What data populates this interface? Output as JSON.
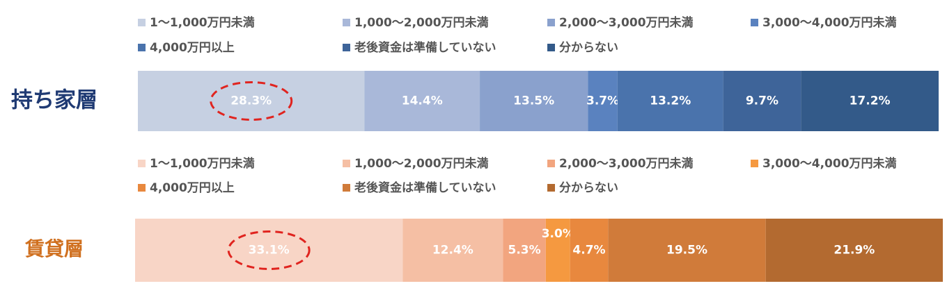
{
  "chart_data": [
    {
      "type": "bar",
      "orientation": "horizontal",
      "stacked": true,
      "row_label": "持ち家層",
      "row_label_color": "#1f3a73",
      "legend_placement": "top",
      "series": [
        {
          "name": "1〜1,000万円未満",
          "values": [
            28.3
          ],
          "color": "#c6d0e2",
          "label": "28.3%"
        },
        {
          "name": "1,000〜2,000万円未満",
          "values": [
            14.4
          ],
          "color": "#a9b8d9",
          "label": "14.4%"
        },
        {
          "name": "2,000〜3,000万円未満",
          "values": [
            13.5
          ],
          "color": "#8aa1cd",
          "label": "13.5%"
        },
        {
          "name": "3,000〜4,000万円未満",
          "values": [
            3.7
          ],
          "color": "#5a82bf",
          "label": "3.7%"
        },
        {
          "name": "4,000万円以上",
          "values": [
            13.2
          ],
          "color": "#4a73ac",
          "label": "13.2%"
        },
        {
          "name": "老後資金は準備していない",
          "values": [
            9.7
          ],
          "color": "#3e6499",
          "label": "9.7%"
        },
        {
          "name": "分からない",
          "values": [
            17.2
          ],
          "color": "#335a89",
          "label": "17.2%"
        }
      ],
      "highlight_series": 0
    },
    {
      "type": "bar",
      "orientation": "horizontal",
      "stacked": true,
      "row_label": "賃貸層",
      "row_label_color": "#d0701f",
      "legend_placement": "top",
      "series": [
        {
          "name": "1〜1,000万円未満",
          "values": [
            33.1
          ],
          "color": "#f8d5c6",
          "label": "33.1%"
        },
        {
          "name": "1,000〜2,000万円未満",
          "values": [
            12.4
          ],
          "color": "#f5bfa4",
          "label": "12.4%"
        },
        {
          "name": "2,000〜3,000万円未満",
          "values": [
            5.3
          ],
          "color": "#f2a57f",
          "label": "5.3%"
        },
        {
          "name": "3,000〜4,000万円未満",
          "values": [
            3.0
          ],
          "color": "#f59940",
          "label": "3.0%"
        },
        {
          "name": "4,000万円以上",
          "values": [
            4.7
          ],
          "color": "#e8883e",
          "label": "4.7%"
        },
        {
          "name": "老後資金は準備していない",
          "values": [
            19.5
          ],
          "color": "#d07b3a",
          "label": "19.5%"
        },
        {
          "name": "分からない",
          "values": [
            21.9
          ],
          "color": "#b36a30",
          "label": "21.9%"
        }
      ],
      "highlight_series": 0
    }
  ]
}
